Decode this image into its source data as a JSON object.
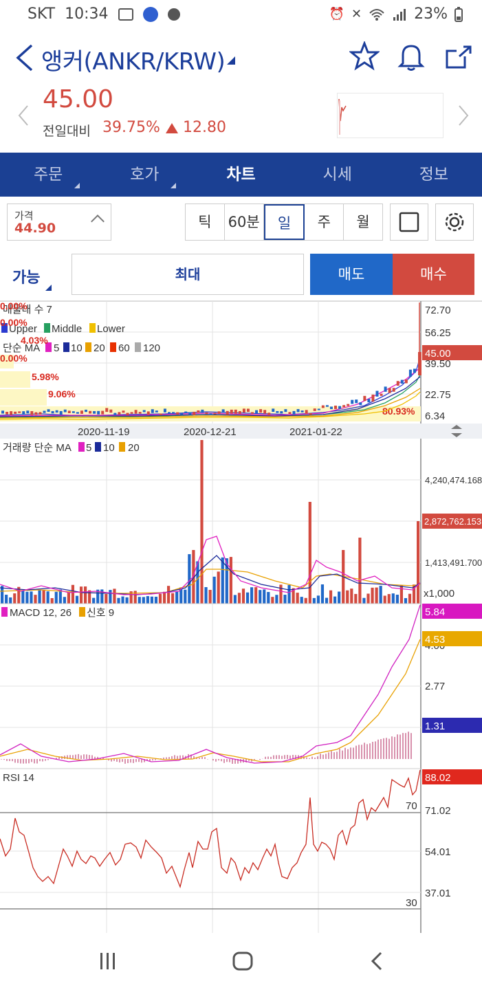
{
  "status": {
    "carrier": "SKT",
    "time": "10:34",
    "battery": "23%"
  },
  "header": {
    "title": "앵커(ANKR/KRW)"
  },
  "price": {
    "current": "45.00",
    "change_label": "전일대비",
    "change_pct": "39.75%",
    "change_amt": "12.80"
  },
  "tabs": [
    {
      "label": "주문"
    },
    {
      "label": "호가"
    },
    {
      "label": "차트"
    },
    {
      "label": "시세"
    },
    {
      "label": "정보"
    }
  ],
  "price_input": {
    "label": "가격",
    "value": "44.90"
  },
  "periods": [
    {
      "label": "틱"
    },
    {
      "label": "60분"
    },
    {
      "label": "일"
    },
    {
      "label": "주"
    },
    {
      "label": "월"
    }
  ],
  "order": {
    "avail": "가능",
    "max": "최대",
    "sell": "매도",
    "buy": "매수"
  },
  "colors": {
    "navy": "#1b4093",
    "up": "#d24a3f",
    "down": "#2068c8",
    "macd": "#d020c0",
    "signal": "#e8a800"
  },
  "chart": {
    "price_panel": {
      "legend_title": "매물대 수 7",
      "bands": [
        "Upper",
        "Middle",
        "Lower"
      ],
      "ma_label": "단순 MA",
      "ma_periods": [
        "5",
        "10",
        "20",
        "60",
        "120"
      ],
      "pct_labels": [
        "0.00%",
        "0.00%",
        "4.03%",
        "0.00%",
        "5.98%",
        "9.06%",
        "80.93%"
      ],
      "y_ticks": [
        "72.70",
        "56.25",
        "39.50",
        "22.75",
        "6.34"
      ],
      "last_price_tag": "45.00",
      "dates": [
        "2020-11-19",
        "2020-12-21",
        "2021-01-22"
      ]
    },
    "volume_panel": {
      "label": "거래량 단순 MA",
      "ma_periods": [
        "5",
        "10",
        "20"
      ],
      "y_ticks": [
        "4,240,474.168",
        "1,413,491.700"
      ],
      "last_tag": "2,872,762.153",
      "unit": "x1,000"
    },
    "macd_panel": {
      "label": "MACD 12, 26",
      "signal_label": "신호 9",
      "y_ticks": [
        "4.00",
        "2.77"
      ],
      "macd_tag": "5.84",
      "signal_tag": "4.53",
      "hist_tag": "1.31"
    },
    "rsi_panel": {
      "label": "RSI 14",
      "y_ticks": [
        "71.02",
        "54.01",
        "37.01"
      ],
      "upper": "70",
      "lower": "30",
      "tag": "88.02"
    }
  }
}
